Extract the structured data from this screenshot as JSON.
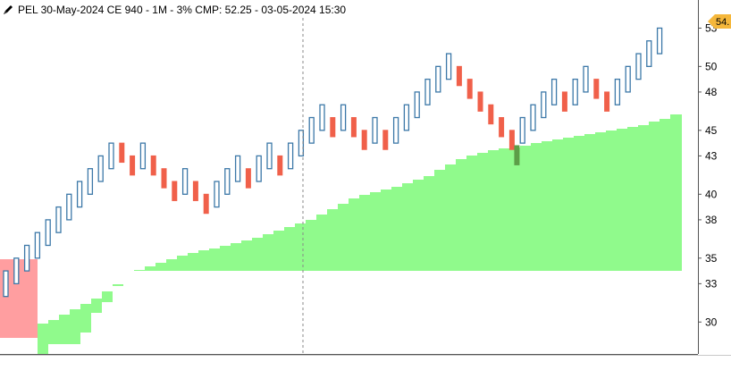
{
  "header": {
    "title": "PEL 30-May-2024 CE 940 - 1M - 3% CMP: 52.25 - 03-05-2024 15:30",
    "icon": "pencil-icon"
  },
  "price_badge": {
    "label": "54.",
    "color": "#f5b73b"
  },
  "colors": {
    "bull_box": "#3c78a8",
    "bear_box": "#f0604a",
    "highlight_fill": "#90fa8c",
    "pink_fill": "#ff9ea0",
    "marker_box": "#5d9e49"
  },
  "chart_data": {
    "type": "renko-boxes",
    "y_axis_ticks": [
      53,
      50,
      48,
      45,
      43,
      40,
      38,
      35,
      33,
      30
    ],
    "ylim": [
      27.5,
      55.2
    ],
    "columns": [
      {
        "c": 1,
        "dir": "up",
        "low": 32.0,
        "high": 34.0
      },
      {
        "c": 2,
        "dir": "up",
        "low": 33.0,
        "high": 35.0
      },
      {
        "c": 3,
        "dir": "up",
        "low": 34.0,
        "high": 36.0
      },
      {
        "c": 4,
        "dir": "up",
        "low": 35.0,
        "high": 37.0
      },
      {
        "c": 5,
        "dir": "up",
        "low": 36.0,
        "high": 38.0
      },
      {
        "c": 6,
        "dir": "up",
        "low": 37.0,
        "high": 39.0
      },
      {
        "c": 7,
        "dir": "up",
        "low": 38.0,
        "high": 40.0
      },
      {
        "c": 8,
        "dir": "up",
        "low": 39.0,
        "high": 41.0
      },
      {
        "c": 9,
        "dir": "up",
        "low": 40.0,
        "high": 42.0
      },
      {
        "c": 10,
        "dir": "up",
        "low": 41.0,
        "high": 43.0
      },
      {
        "c": 11,
        "dir": "up",
        "low": 42.0,
        "high": 44.0
      },
      {
        "c": 12,
        "dir": "down",
        "low": 42.5,
        "high": 44.0
      },
      {
        "c": 13,
        "dir": "down",
        "low": 41.5,
        "high": 43.0
      },
      {
        "c": 14,
        "dir": "up",
        "low": 42.0,
        "high": 44.0
      },
      {
        "c": 15,
        "dir": "down",
        "low": 41.5,
        "high": 43.0
      },
      {
        "c": 16,
        "dir": "down",
        "low": 40.5,
        "high": 42.0
      },
      {
        "c": 17,
        "dir": "down",
        "low": 39.5,
        "high": 41.0
      },
      {
        "c": 18,
        "dir": "up",
        "low": 40.0,
        "high": 42.0
      },
      {
        "c": 19,
        "dir": "down",
        "low": 39.5,
        "high": 41.0
      },
      {
        "c": 20,
        "dir": "down",
        "low": 38.5,
        "high": 40.0
      },
      {
        "c": 21,
        "dir": "up",
        "low": 39.0,
        "high": 41.0
      },
      {
        "c": 22,
        "dir": "up",
        "low": 40.0,
        "high": 42.0
      },
      {
        "c": 23,
        "dir": "up",
        "low": 41.0,
        "high": 43.0
      },
      {
        "c": 24,
        "dir": "down",
        "low": 40.5,
        "high": 42.0
      },
      {
        "c": 25,
        "dir": "up",
        "low": 41.0,
        "high": 43.0
      },
      {
        "c": 26,
        "dir": "up",
        "low": 42.0,
        "high": 44.0
      },
      {
        "c": 27,
        "dir": "down",
        "low": 41.5,
        "high": 43.0
      },
      {
        "c": 28,
        "dir": "up",
        "low": 42.0,
        "high": 44.0
      },
      {
        "c": 29,
        "dir": "up",
        "low": 43.0,
        "high": 45.0
      },
      {
        "c": 30,
        "dir": "up",
        "low": 44.0,
        "high": 46.0
      },
      {
        "c": 31,
        "dir": "up",
        "low": 45.0,
        "high": 47.0
      },
      {
        "c": 32,
        "dir": "down",
        "low": 44.5,
        "high": 46.0
      },
      {
        "c": 33,
        "dir": "up",
        "low": 45.0,
        "high": 47.0
      },
      {
        "c": 34,
        "dir": "down",
        "low": 44.5,
        "high": 46.0
      },
      {
        "c": 35,
        "dir": "down",
        "low": 43.5,
        "high": 45.0
      },
      {
        "c": 36,
        "dir": "up",
        "low": 44.0,
        "high": 46.0
      },
      {
        "c": 37,
        "dir": "down",
        "low": 43.5,
        "high": 45.0
      },
      {
        "c": 38,
        "dir": "up",
        "low": 44.0,
        "high": 46.0
      },
      {
        "c": 39,
        "dir": "up",
        "low": 45.0,
        "high": 47.0
      },
      {
        "c": 40,
        "dir": "up",
        "low": 46.0,
        "high": 48.0
      },
      {
        "c": 41,
        "dir": "up",
        "low": 47.0,
        "high": 49.0
      },
      {
        "c": 42,
        "dir": "up",
        "low": 48.0,
        "high": 50.0
      },
      {
        "c": 43,
        "dir": "up",
        "low": 49.0,
        "high": 51.0
      },
      {
        "c": 44,
        "dir": "down",
        "low": 48.5,
        "high": 50.0
      },
      {
        "c": 45,
        "dir": "down",
        "low": 47.5,
        "high": 49.0
      },
      {
        "c": 46,
        "dir": "down",
        "low": 46.5,
        "high": 48.0
      },
      {
        "c": 47,
        "dir": "down",
        "low": 45.5,
        "high": 47.0
      },
      {
        "c": 48,
        "dir": "down",
        "low": 44.5,
        "high": 46.0
      },
      {
        "c": 49,
        "dir": "down",
        "low": 43.5,
        "high": 45.0
      },
      {
        "c": 50,
        "dir": "up",
        "low": 44.0,
        "high": 46.0
      },
      {
        "c": 51,
        "dir": "up",
        "low": 45.0,
        "high": 47.0
      },
      {
        "c": 52,
        "dir": "up",
        "low": 46.0,
        "high": 48.0
      },
      {
        "c": 53,
        "dir": "up",
        "low": 47.0,
        "high": 49.0
      },
      {
        "c": 54,
        "dir": "down",
        "low": 46.5,
        "high": 48.0
      },
      {
        "c": 55,
        "dir": "up",
        "low": 47.0,
        "high": 49.0
      },
      {
        "c": 56,
        "dir": "up",
        "low": 48.0,
        "high": 50.0
      },
      {
        "c": 57,
        "dir": "down",
        "low": 47.5,
        "high": 49.0
      },
      {
        "c": 58,
        "dir": "down",
        "low": 46.5,
        "high": 48.0
      },
      {
        "c": 59,
        "dir": "up",
        "low": 47.0,
        "high": 49.0
      },
      {
        "c": 60,
        "dir": "up",
        "low": 48.0,
        "high": 50.0
      },
      {
        "c": 61,
        "dir": "up",
        "low": 49.0,
        "high": 51.0
      },
      {
        "c": 62,
        "dir": "up",
        "low": 50.0,
        "high": 52.0
      },
      {
        "c": 63,
        "dir": "up",
        "low": 51.0,
        "high": 53.0
      }
    ]
  }
}
